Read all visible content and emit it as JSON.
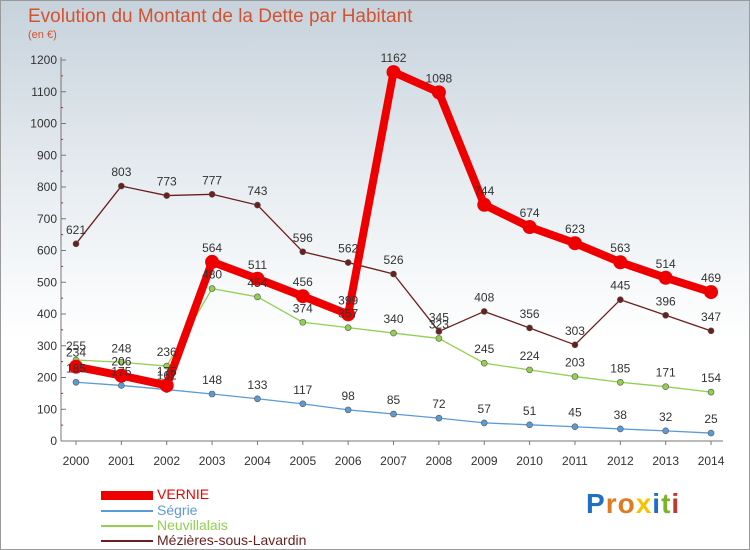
{
  "title": "Evolution du Montant de la Dette par Habitant",
  "subtitle": "(en €)",
  "brand": "Proxiti",
  "chart_data": {
    "type": "line",
    "title": "Evolution du Montant de la Dette par Habitant",
    "subtitle": "(en €)",
    "x": [
      "2000",
      "2001",
      "2002",
      "2003",
      "2004",
      "2005",
      "2006",
      "2007",
      "2008",
      "2009",
      "2010",
      "2011",
      "2012",
      "2013",
      "2014"
    ],
    "ylim": [
      0,
      1200
    ],
    "yticks": [
      0,
      100,
      200,
      300,
      400,
      500,
      600,
      700,
      800,
      900,
      1000,
      1100,
      1200
    ],
    "grid": false,
    "legend_position": "bottom-left",
    "series": [
      {
        "name": "VERNIE",
        "color": "#ee0000",
        "values": [
          234,
          206,
          175,
          564,
          511,
          456,
          399,
          1162,
          1098,
          744,
          674,
          623,
          563,
          514,
          469
        ]
      },
      {
        "name": "Ségrie",
        "color": "#5b9bd5",
        "values": [
          185,
          175,
          162,
          148,
          133,
          117,
          98,
          85,
          72,
          57,
          51,
          45,
          38,
          32,
          25
        ]
      },
      {
        "name": "Neuvillalais",
        "color": "#92d050",
        "values": [
          255,
          248,
          236,
          480,
          454,
          374,
          357,
          340,
          323,
          245,
          224,
          203,
          185,
          171,
          154
        ]
      },
      {
        "name": "Mézières-sous-Lavardin",
        "color": "#6b1e1e",
        "values": [
          621,
          803,
          773,
          777,
          743,
          596,
          562,
          526,
          345,
          408,
          356,
          303,
          445,
          396,
          347
        ]
      }
    ]
  }
}
